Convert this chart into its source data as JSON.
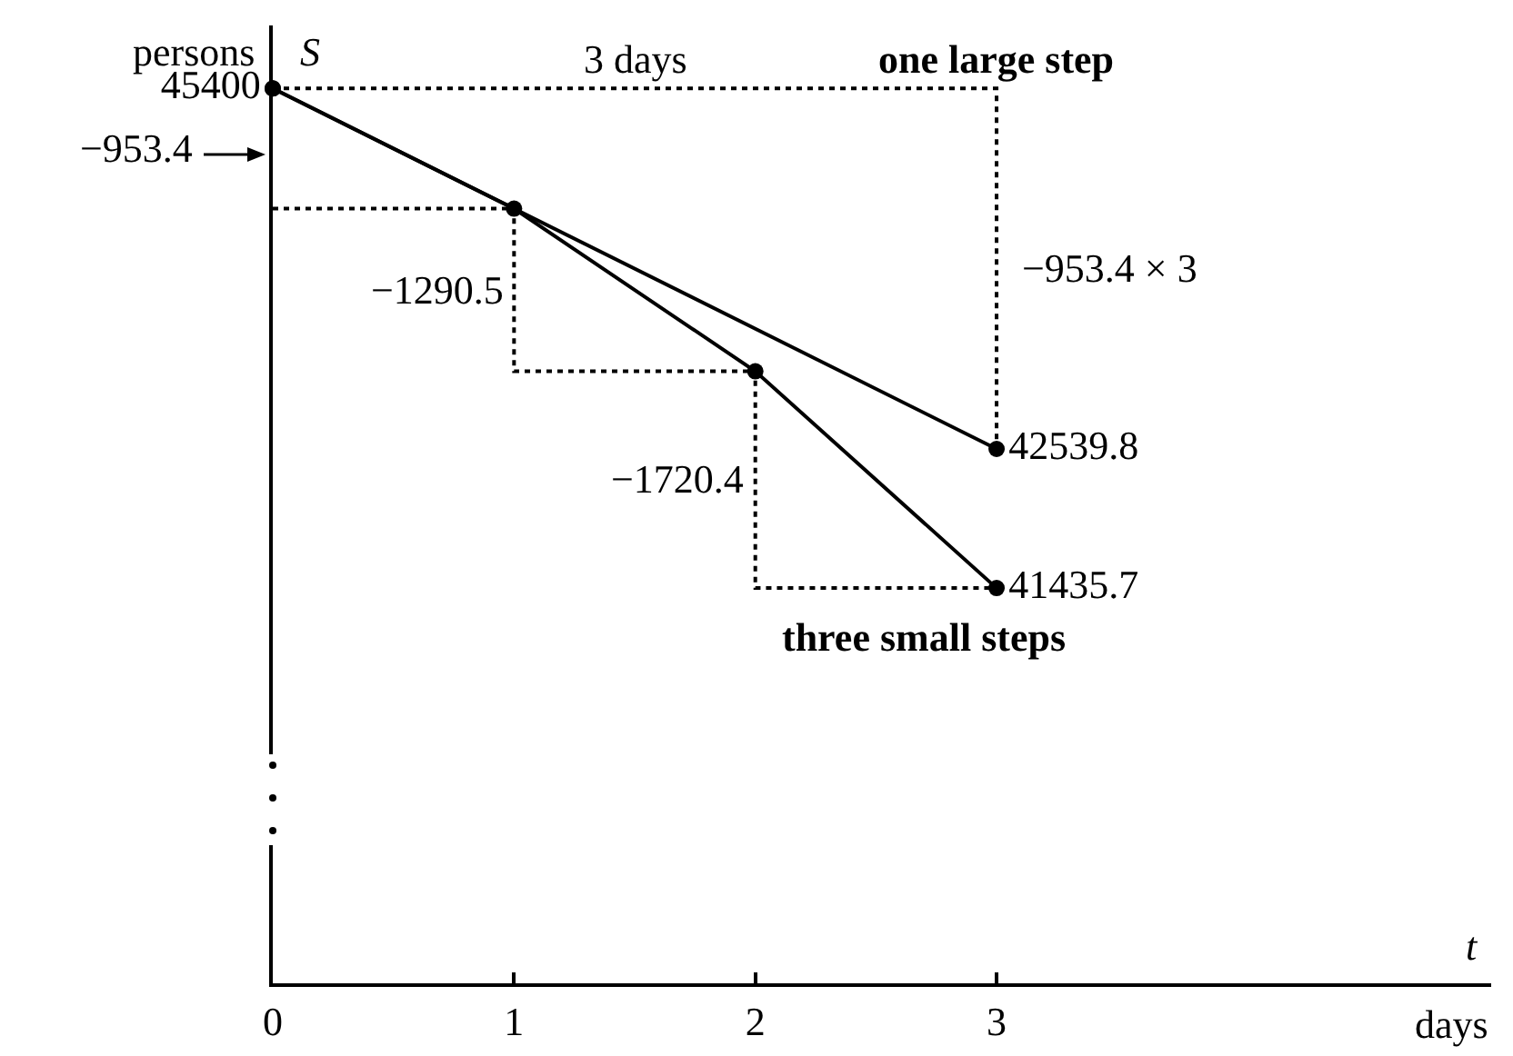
{
  "chart_data": {
    "type": "line",
    "xlabel": "days",
    "ylabel": "persons",
    "series": [
      {
        "color": "#000000",
        "x": [
          0,
          3
        ],
        "values": [
          45400,
          42539.8
        ],
        "value_labels": [
          "45400",
          "42539.8"
        ],
        "marker": "circle",
        "line_style": "solid"
      },
      {
        "color": "#000000",
        "x": [
          0,
          1,
          2,
          3
        ],
        "values": [
          45400,
          44446.6,
          43156.1,
          41435.7
        ],
        "value_labels": [
          null,
          null,
          null,
          "41435.7"
        ],
        "marker": "circle",
        "line_style": "solid"
      },
      {
        "color": "#000000",
        "x": [
          0,
          3,
          3
        ],
        "values": [
          45400,
          45400,
          42539.8
        ],
        "marker": "none",
        "line_style": "dotted"
      },
      {
        "color": "#000000",
        "x": [
          0,
          1,
          1,
          2,
          2,
          3
        ],
        "values": [
          44446.6,
          44446.6,
          43156.1,
          43156.1,
          41435.7,
          41435.7
        ],
        "marker": "none",
        "line_style": "dotted"
      }
    ],
    "annotations": [
      {
        "text": "3 days",
        "x": 1.5,
        "y": 45400
      },
      {
        "text": "one large step",
        "x": 3,
        "y": 45400
      },
      {
        "text": "−953.4 × 3",
        "x": 3,
        "y": 43970
      },
      {
        "text": "−1290.5",
        "x": 1,
        "y": 43801
      },
      {
        "text": "−1720.4",
        "x": 2,
        "y": 42296
      },
      {
        "text": "three small steps",
        "x": 3,
        "y": 41435.7
      },
      "−953.4",
      "S",
      "t"
    ],
    "xlim": [
      0,
      5.05
    ],
    "xticks": [
      0,
      1,
      2,
      3
    ],
    "ylim": [
      38300,
      45900
    ],
    "tick_labels": "x",
    "grid": false
  }
}
